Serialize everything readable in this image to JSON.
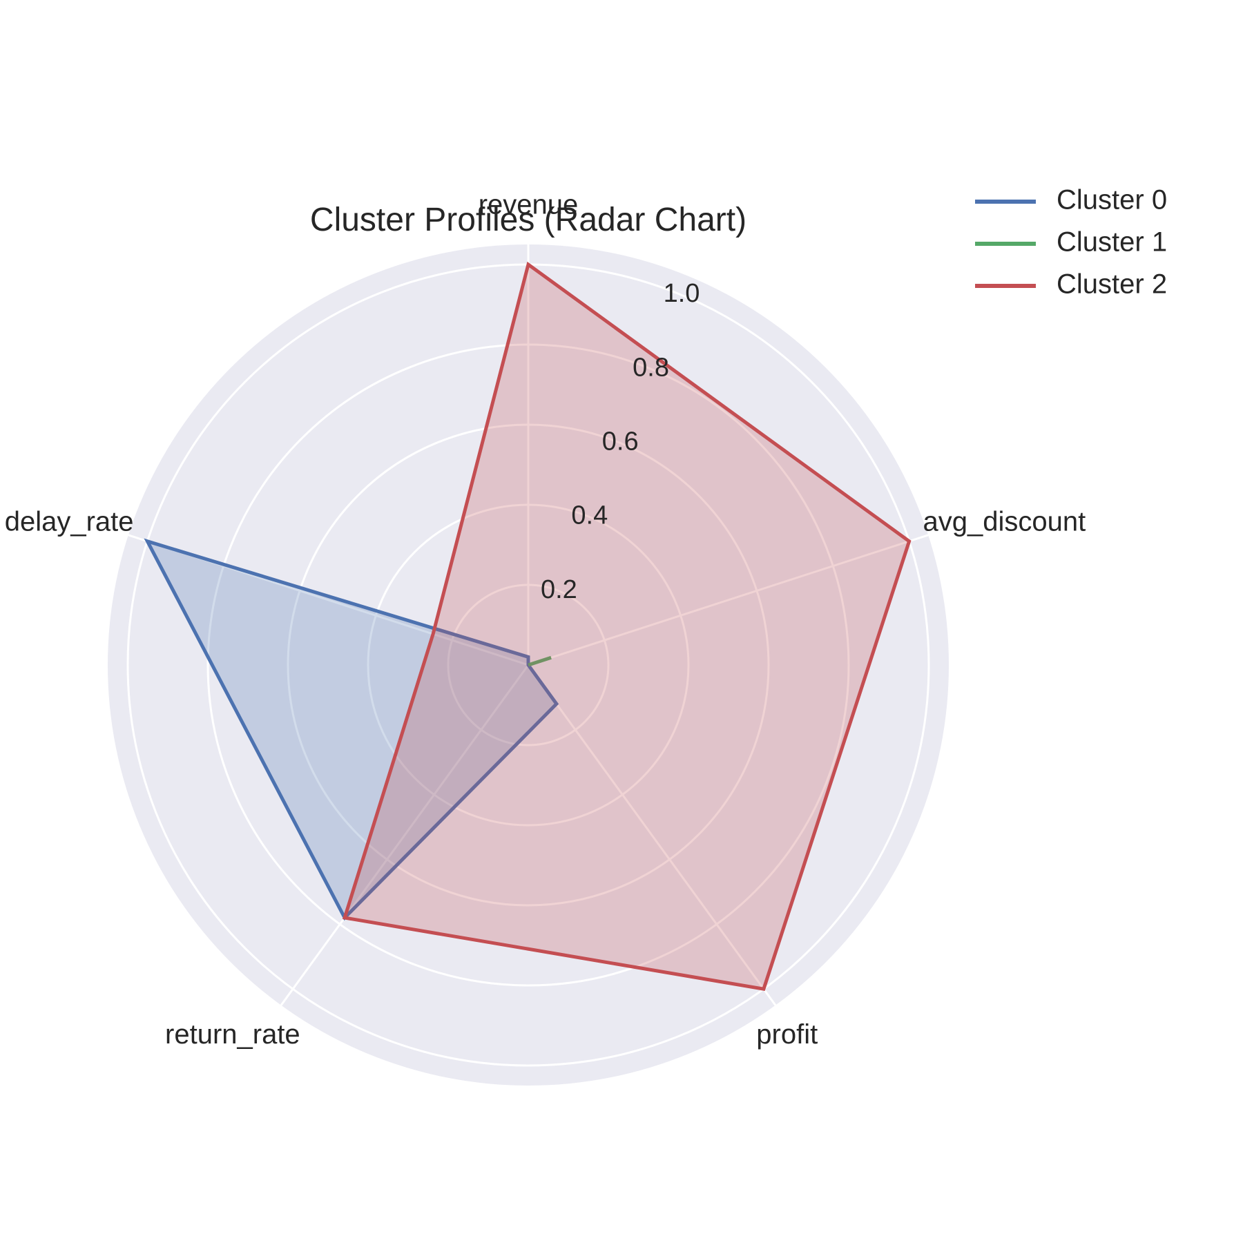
{
  "chart_data": {
    "type": "radar",
    "title": "Cluster Profiles (Radar Chart)",
    "axes": [
      "revenue",
      "avg_discount",
      "profit",
      "return_rate",
      "delay_rate"
    ],
    "radial_ticks": [
      "0.2",
      "0.4",
      "0.6",
      "0.8",
      "1.0"
    ],
    "radial_tick_values": [
      0.2,
      0.4,
      0.6,
      0.8,
      1.0
    ],
    "rlim": [
      0,
      1.05
    ],
    "grid": true,
    "legend_position": "top-right",
    "series": [
      {
        "name": "Cluster 0",
        "color": "#4c72b0",
        "values": [
          0.02,
          0.0,
          0.12,
          0.78,
          1.0
        ]
      },
      {
        "name": "Cluster 1",
        "color": "#55a868",
        "values": [
          0.0,
          0.06,
          0.0,
          0.0,
          0.0
        ]
      },
      {
        "name": "Cluster 2",
        "color": "#c44e52",
        "values": [
          1.0,
          1.0,
          1.0,
          0.78,
          0.25
        ]
      }
    ],
    "colors": {
      "plot_background": "#eaeaf2",
      "grid": "#ffffff"
    }
  }
}
